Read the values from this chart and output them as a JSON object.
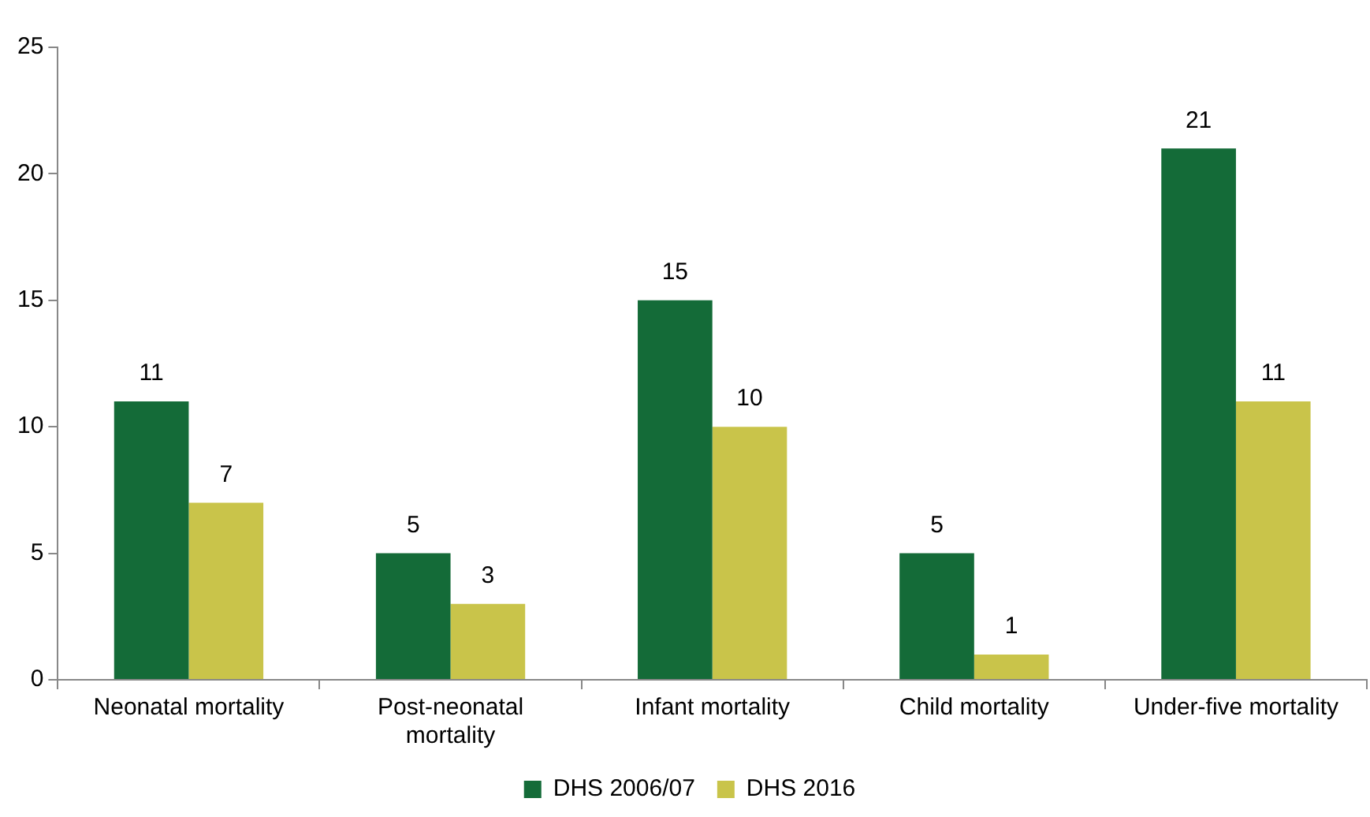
{
  "chart_data": {
    "type": "bar",
    "categories": [
      "Neonatal mortality",
      "Post-neonatal mortality",
      "Infant mortality",
      "Child mortality",
      "Under-five mortality"
    ],
    "series": [
      {
        "name": "DHS 2006/07",
        "color": "#146b38",
        "values": [
          11,
          5,
          15,
          5,
          21
        ]
      },
      {
        "name": "DHS 2016",
        "color": "#c9c44a",
        "values": [
          7,
          3,
          10,
          1,
          11
        ]
      }
    ],
    "ylim": [
      0,
      25
    ],
    "yticks": [
      0,
      5,
      10,
      15,
      20,
      25
    ],
    "grid": false,
    "legend": "bottom",
    "data_labels": true
  }
}
